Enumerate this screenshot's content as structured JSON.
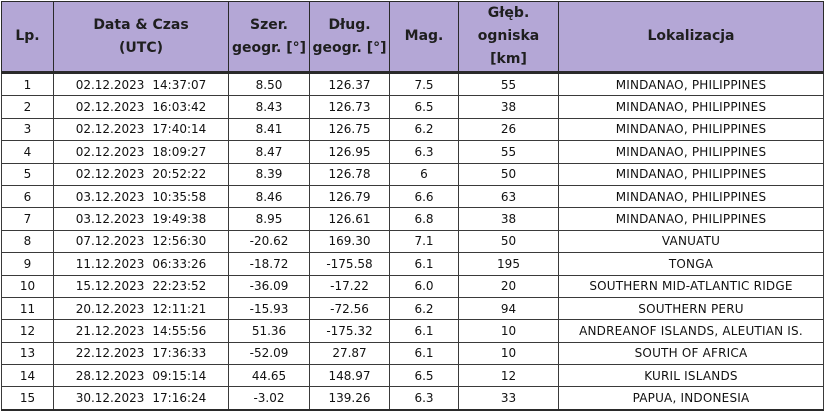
{
  "headers": {
    "lp": "Lp.",
    "datetime_line1": "Data & Czas",
    "datetime_line2": "(UTC)",
    "lat_line1": "Szer.",
    "lat_line2": "geogr. [°]",
    "lon_line1": "Dług.",
    "lon_line2": "geogr. [°]",
    "mag": "Mag.",
    "depth_line1": "Głęb.",
    "depth_line2": "ogniska [km]",
    "location": "Lokalizacja"
  },
  "rows": [
    {
      "lp": "1",
      "date": "02.12.2023",
      "time": "14:37:07",
      "lat": "8.50",
      "lon": "126.37",
      "mag": "7.5",
      "depth": "55",
      "location": "MINDANAO, PHILIPPINES"
    },
    {
      "lp": "2",
      "date": "02.12.2023",
      "time": "16:03:42",
      "lat": "8.43",
      "lon": "126.73",
      "mag": "6.5",
      "depth": "38",
      "location": "MINDANAO, PHILIPPINES"
    },
    {
      "lp": "3",
      "date": "02.12.2023",
      "time": "17:40:14",
      "lat": "8.41",
      "lon": "126.75",
      "mag": "6.2",
      "depth": "26",
      "location": "MINDANAO, PHILIPPINES"
    },
    {
      "lp": "4",
      "date": "02.12.2023",
      "time": "18:09:27",
      "lat": "8.47",
      "lon": "126.95",
      "mag": "6.3",
      "depth": "55",
      "location": "MINDANAO, PHILIPPINES"
    },
    {
      "lp": "5",
      "date": "02.12.2023",
      "time": "20:52:22",
      "lat": "8.39",
      "lon": "126.78",
      "mag": "6",
      "depth": "50",
      "location": "MINDANAO, PHILIPPINES"
    },
    {
      "lp": "6",
      "date": "03.12.2023",
      "time": "10:35:58",
      "lat": "8.46",
      "lon": "126.79",
      "mag": "6.6",
      "depth": "63",
      "location": "MINDANAO, PHILIPPINES"
    },
    {
      "lp": "7",
      "date": "03.12.2023",
      "time": "19:49:38",
      "lat": "8.95",
      "lon": "126.61",
      "mag": "6.8",
      "depth": "38",
      "location": "MINDANAO, PHILIPPINES"
    },
    {
      "lp": "8",
      "date": "07.12.2023",
      "time": "12:56:30",
      "lat": "-20.62",
      "lon": "169.30",
      "mag": "7.1",
      "depth": "50",
      "location": "VANUATU"
    },
    {
      "lp": "9",
      "date": "11.12.2023",
      "time": "06:33:26",
      "lat": "-18.72",
      "lon": "-175.58",
      "mag": "6.1",
      "depth": "195",
      "location": "TONGA"
    },
    {
      "lp": "10",
      "date": "15.12.2023",
      "time": "22:23:52",
      "lat": "-36.09",
      "lon": "-17.22",
      "mag": "6.0",
      "depth": "20",
      "location": "SOUTHERN MID-ATLANTIC RIDGE"
    },
    {
      "lp": "11",
      "date": "20.12.2023",
      "time": "12:11:21",
      "lat": "-15.93",
      "lon": "-72.56",
      "mag": "6.2",
      "depth": "94",
      "location": "SOUTHERN PERU"
    },
    {
      "lp": "12",
      "date": "21.12.2023",
      "time": "14:55:56",
      "lat": "51.36",
      "lon": "-175.32",
      "mag": "6.1",
      "depth": "10",
      "location": "ANDREANOF ISLANDS, ALEUTIAN IS."
    },
    {
      "lp": "13",
      "date": "22.12.2023",
      "time": "17:36:33",
      "lat": "-52.09",
      "lon": "27.87",
      "mag": "6.1",
      "depth": "10",
      "location": "SOUTH OF AFRICA"
    },
    {
      "lp": "14",
      "date": "28.12.2023",
      "time": "09:15:14",
      "lat": "44.65",
      "lon": "148.97",
      "mag": "6.5",
      "depth": "12",
      "location": "KURIL ISLANDS"
    },
    {
      "lp": "15",
      "date": "30.12.2023",
      "time": "17:16:24",
      "lat": "-3.02",
      "lon": "139.26",
      "mag": "6.3",
      "depth": "33",
      "location": "PAPUA, INDONESIA"
    }
  ],
  "colors": {
    "header_background": "#b4a7d6",
    "border": "#2a2a2a"
  }
}
